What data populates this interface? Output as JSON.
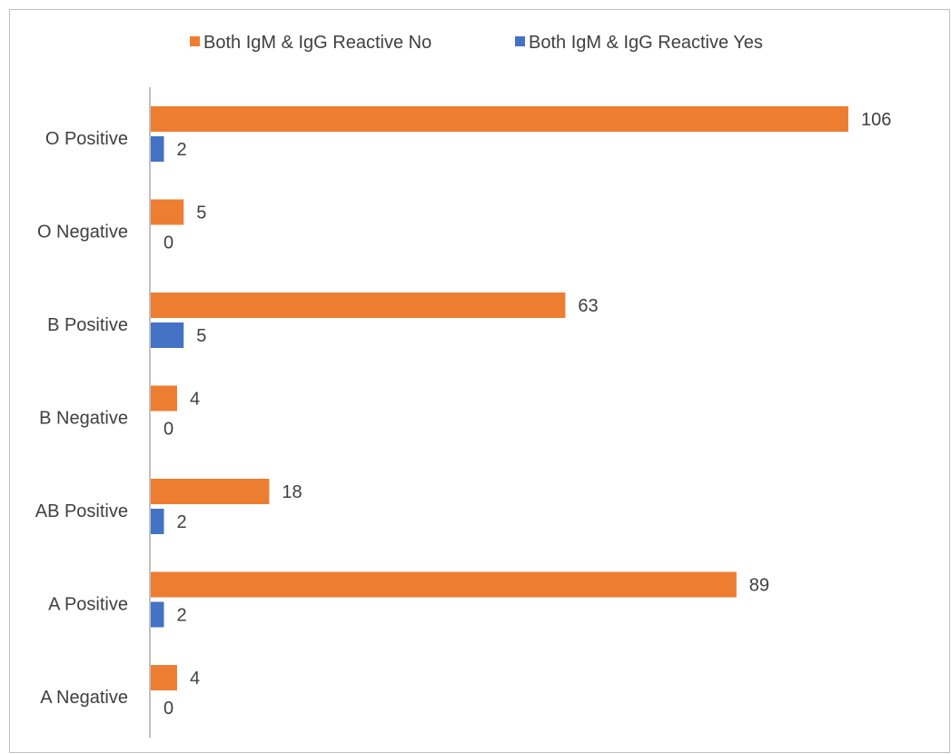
{
  "chart_data": {
    "type": "bar",
    "orientation": "horizontal",
    "title": "",
    "xlabel": "",
    "ylabel": "",
    "categories": [
      "O Positive",
      "O Negative",
      "B Positive",
      "B Negative",
      "AB Positive",
      "A Positive",
      "A Negative"
    ],
    "series": [
      {
        "name": "Both IgM & IgG Reactive No",
        "color": "#ED7D31",
        "values": [
          106,
          5,
          63,
          4,
          18,
          89,
          4
        ]
      },
      {
        "name": "Both IgM & IgG Reactive Yes",
        "color": "#4472C4",
        "values": [
          2,
          0,
          5,
          0,
          2,
          2,
          0
        ]
      }
    ],
    "xlim": [
      0,
      110
    ],
    "grid": false,
    "legend_position": "top",
    "data_labels": true
  }
}
